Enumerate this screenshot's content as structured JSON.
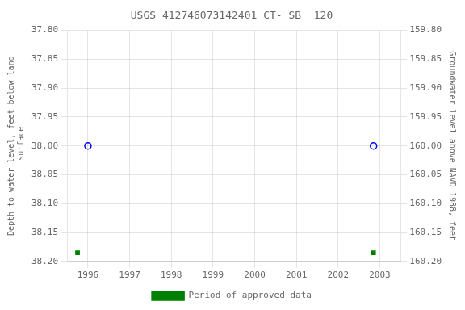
{
  "chart_data": {
    "type": "scatter",
    "title": "USGS 412746073142401 CT- SB  120",
    "ylabel": "Depth to water level, feet below land\n surface",
    "y2label": "Groundwater level above NAVD 1988, feet",
    "xlim": [
      1995.5,
      2003.5
    ],
    "xticks": [
      1996,
      1997,
      1998,
      1999,
      2000,
      2001,
      2002,
      2003
    ],
    "ylim": [
      38.2,
      37.8
    ],
    "yticks": [
      {
        "value": 37.8,
        "label": "37.80"
      },
      37.85,
      {
        "value": 37.9,
        "label": "37.90"
      },
      37.95,
      {
        "value": 38.0,
        "label": "38.00"
      },
      38.05,
      {
        "value": 38.1,
        "label": "38.10"
      },
      38.15,
      {
        "value": 38.2,
        "label": "38.20"
      }
    ],
    "y2lim": [
      160.2,
      159.8
    ],
    "y2ticks": [
      {
        "value": 159.8,
        "label": "159.80"
      },
      159.85,
      {
        "value": 159.9,
        "label": "159.90"
      },
      159.95,
      {
        "value": 160.0,
        "label": "160.00"
      },
      160.05,
      {
        "value": 160.1,
        "label": "160.10"
      },
      160.15,
      {
        "value": 160.2,
        "label": "160.20"
      }
    ],
    "series": [
      {
        "color": "#0000ff",
        "marker": "circle",
        "x": [
          1996.0,
          2002.85
        ],
        "values": [
          38.0,
          38.0
        ]
      },
      {
        "name": "Period of approved data",
        "color": "#008000",
        "marker": "square",
        "x": [
          1995.75,
          2002.85
        ],
        "values": [
          38.185,
          38.185
        ]
      }
    ],
    "grid": true,
    "legend": "bottom"
  }
}
